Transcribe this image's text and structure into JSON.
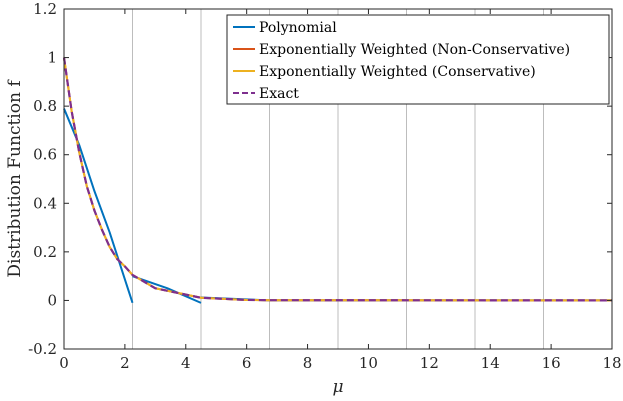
{
  "chart_data": {
    "type": "line",
    "xlabel": "μ",
    "ylabel": "Distribution Function f",
    "xlim": [
      0,
      18
    ],
    "ylim": [
      -0.2,
      1.2
    ],
    "xticks": [
      "0",
      "2",
      "4",
      "6",
      "8",
      "10",
      "12",
      "14",
      "16",
      "18"
    ],
    "yticks": [
      "-0.2",
      "0",
      "0.2",
      "0.4",
      "0.6",
      "0.8",
      "1",
      "1.2"
    ],
    "element_boundaries": [
      2.25,
      4.5,
      6.75,
      9.0,
      11.25,
      13.5,
      15.75
    ],
    "legend_position": "top-right",
    "series": [
      {
        "name": "Polynomial",
        "color": "#0072BD",
        "style": "solid",
        "segments": [
          [
            [
              0,
              0.79
            ],
            [
              0.5,
              0.64
            ],
            [
              1.0,
              0.45
            ],
            [
              1.5,
              0.28
            ],
            [
              2.25,
              -0.01
            ]
          ],
          [
            [
              2.25,
              0.1
            ],
            [
              3.4,
              0.05
            ],
            [
              4.5,
              -0.01
            ]
          ],
          [
            [
              4.5,
              0.012
            ],
            [
              6.75,
              0.0
            ]
          ],
          [
            [
              6.75,
              0.0
            ],
            [
              18,
              0.0
            ]
          ]
        ]
      },
      {
        "name": "Exponentially Weighted (Non-Conservative)",
        "color": "#D95319",
        "style": "solid",
        "points": [
          [
            0,
            1.0
          ],
          [
            0.25,
            0.78
          ],
          [
            0.5,
            0.61
          ],
          [
            0.75,
            0.47
          ],
          [
            1.0,
            0.37
          ],
          [
            1.25,
            0.29
          ],
          [
            1.5,
            0.22
          ],
          [
            1.75,
            0.17
          ],
          [
            2.0,
            0.14
          ],
          [
            2.25,
            0.105
          ],
          [
            3.0,
            0.05
          ],
          [
            4.5,
            0.011
          ],
          [
            6.0,
            0.002
          ],
          [
            6.75,
            0.001
          ],
          [
            18,
            0.0
          ]
        ]
      },
      {
        "name": "Exponentially Weighted (Conservative)",
        "color": "#EDB120",
        "style": "solid",
        "points": [
          [
            0,
            1.0
          ],
          [
            0.25,
            0.78
          ],
          [
            0.5,
            0.61
          ],
          [
            0.75,
            0.47
          ],
          [
            1.0,
            0.37
          ],
          [
            1.25,
            0.29
          ],
          [
            1.5,
            0.22
          ],
          [
            1.75,
            0.17
          ],
          [
            2.0,
            0.14
          ],
          [
            2.25,
            0.105
          ],
          [
            3.0,
            0.05
          ],
          [
            4.5,
            0.011
          ],
          [
            6.0,
            0.002
          ],
          [
            6.75,
            0.001
          ],
          [
            18,
            0.0
          ]
        ]
      },
      {
        "name": "Exact",
        "color": "#7E2F8E",
        "style": "dashed",
        "points": [
          [
            0,
            1.0
          ],
          [
            0.25,
            0.78
          ],
          [
            0.5,
            0.61
          ],
          [
            0.75,
            0.47
          ],
          [
            1.0,
            0.37
          ],
          [
            1.25,
            0.29
          ],
          [
            1.5,
            0.22
          ],
          [
            1.75,
            0.17
          ],
          [
            2.0,
            0.14
          ],
          [
            2.25,
            0.105
          ],
          [
            3.0,
            0.05
          ],
          [
            4.5,
            0.011
          ],
          [
            6.0,
            0.002
          ],
          [
            6.75,
            0.001
          ],
          [
            18,
            0.0
          ]
        ]
      }
    ]
  }
}
